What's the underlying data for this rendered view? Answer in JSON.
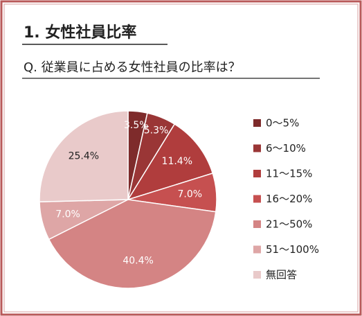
{
  "chart_data": {
    "type": "pie",
    "title": "1. 女性社員比率",
    "subtitle": "Q. 従業員に占める女性社員の比率は？",
    "categories": [
      "0～5%",
      "6～10%",
      "11～15%",
      "16～20%",
      "21～50%",
      "51～100%",
      "無回答"
    ],
    "values": [
      3.5,
      5.3,
      11.4,
      7.0,
      40.4,
      7.0,
      25.4
    ],
    "value_labels": [
      "3.5%",
      "5.3%",
      "11.4%",
      "7.0%",
      "40.4%",
      "7.0%",
      "25.4%"
    ],
    "colors": [
      "#7e2b2b",
      "#9a3636",
      "#b03d3d",
      "#c65050",
      "#d48484",
      "#dea6a6",
      "#e9caca"
    ],
    "label_colors": [
      "#ffffff",
      "#ffffff",
      "#ffffff",
      "#ffffff",
      "#ffffff",
      "#ffffff",
      "#222222"
    ],
    "legend": "right"
  }
}
